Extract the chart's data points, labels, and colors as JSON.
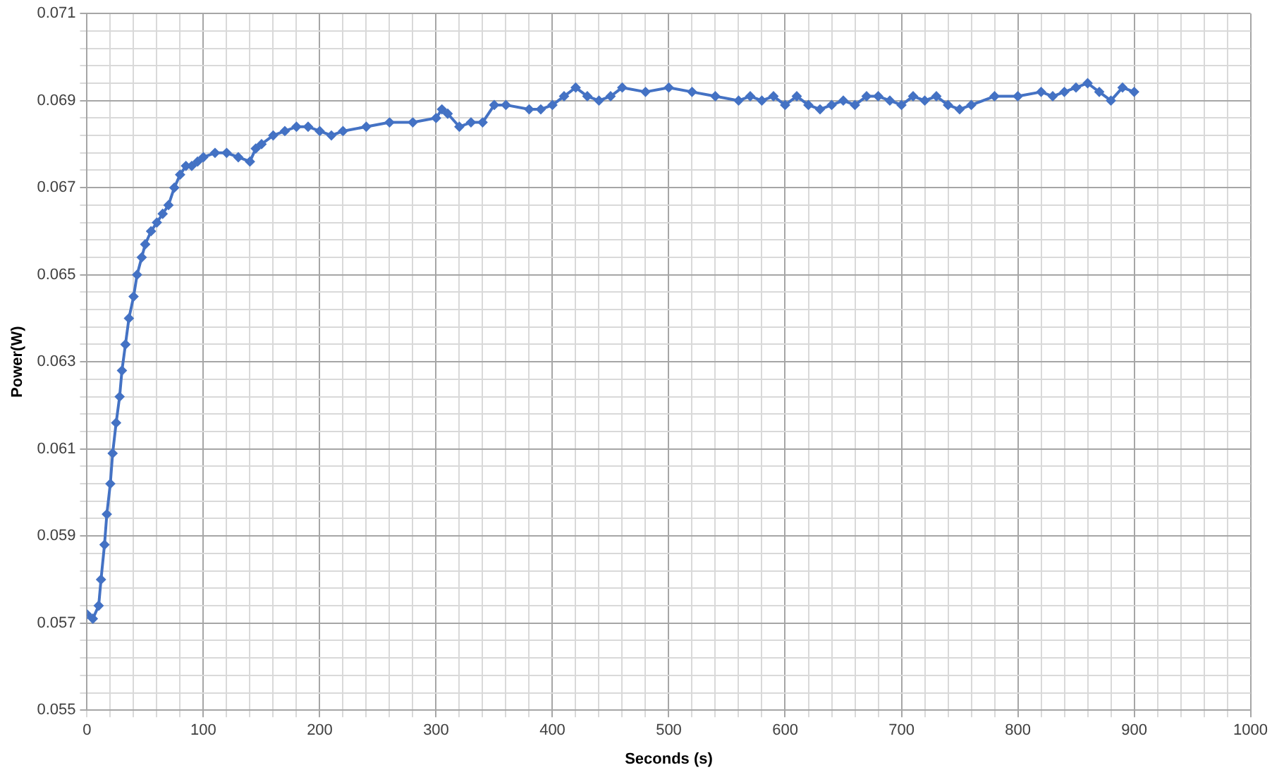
{
  "chart_data": {
    "type": "line",
    "xlabel": "Seconds (s)",
    "ylabel": "Power(W)",
    "marker": "diamond",
    "grid": true,
    "legend": false,
    "xlim": [
      0,
      1000
    ],
    "ylim": [
      0.055,
      0.071
    ],
    "xticks": [
      0,
      {
        "value": 20,
        "label": null
      },
      {
        "value": 40,
        "label": null
      },
      {
        "value": 60,
        "label": null
      },
      {
        "value": 80,
        "label": null
      },
      100,
      {
        "value": 120,
        "label": null
      },
      {
        "value": 140,
        "label": null
      },
      {
        "value": 160,
        "label": null
      },
      {
        "value": 180,
        "label": null
      },
      200,
      {
        "value": 220,
        "label": null
      },
      {
        "value": 240,
        "label": null
      },
      {
        "value": 260,
        "label": null
      },
      {
        "value": 280,
        "label": null
      },
      300,
      {
        "value": 320,
        "label": null
      },
      {
        "value": 340,
        "label": null
      },
      {
        "value": 360,
        "label": null
      },
      {
        "value": 380,
        "label": null
      },
      400,
      {
        "value": 420,
        "label": null
      },
      {
        "value": 440,
        "label": null
      },
      {
        "value": 460,
        "label": null
      },
      {
        "value": 480,
        "label": null
      },
      500,
      {
        "value": 520,
        "label": null
      },
      {
        "value": 540,
        "label": null
      },
      {
        "value": 560,
        "label": null
      },
      {
        "value": 580,
        "label": null
      },
      600,
      {
        "value": 620,
        "label": null
      },
      {
        "value": 640,
        "label": null
      },
      {
        "value": 660,
        "label": null
      },
      {
        "value": 680,
        "label": null
      },
      700,
      {
        "value": 720,
        "label": null
      },
      {
        "value": 740,
        "label": null
      },
      {
        "value": 760,
        "label": null
      },
      {
        "value": 780,
        "label": null
      },
      800,
      {
        "value": 820,
        "label": null
      },
      {
        "value": 840,
        "label": null
      },
      {
        "value": 860,
        "label": null
      },
      {
        "value": 880,
        "label": null
      },
      900,
      {
        "value": 920,
        "label": null
      },
      {
        "value": 940,
        "label": null
      },
      {
        "value": 960,
        "label": null
      },
      {
        "value": 980,
        "label": null
      },
      1000
    ],
    "yticks": [
      {
        "value": 0.055,
        "label": "0.055"
      },
      {
        "value": 0.0554,
        "label": null
      },
      {
        "value": 0.0558,
        "label": null
      },
      {
        "value": 0.0562,
        "label": null
      },
      {
        "value": 0.0566,
        "label": null
      },
      {
        "value": 0.057,
        "label": "0.057"
      },
      {
        "value": 0.0574,
        "label": null
      },
      {
        "value": 0.0578,
        "label": null
      },
      {
        "value": 0.0582,
        "label": null
      },
      {
        "value": 0.0586,
        "label": null
      },
      {
        "value": 0.059,
        "label": "0.059"
      },
      {
        "value": 0.0594,
        "label": null
      },
      {
        "value": 0.0598,
        "label": null
      },
      {
        "value": 0.0602,
        "label": null
      },
      {
        "value": 0.0606,
        "label": null
      },
      {
        "value": 0.061,
        "label": "0.061"
      },
      {
        "value": 0.0614,
        "label": null
      },
      {
        "value": 0.0618,
        "label": null
      },
      {
        "value": 0.0622,
        "label": null
      },
      {
        "value": 0.0626,
        "label": null
      },
      {
        "value": 0.063,
        "label": "0.063"
      },
      {
        "value": 0.0634,
        "label": null
      },
      {
        "value": 0.0638,
        "label": null
      },
      {
        "value": 0.0642,
        "label": null
      },
      {
        "value": 0.0646,
        "label": null
      },
      {
        "value": 0.065,
        "label": "0.065"
      },
      {
        "value": 0.0654,
        "label": null
      },
      {
        "value": 0.0658,
        "label": null
      },
      {
        "value": 0.0662,
        "label": null
      },
      {
        "value": 0.0666,
        "label": null
      },
      {
        "value": 0.067,
        "label": "0.067"
      },
      {
        "value": 0.0674,
        "label": null
      },
      {
        "value": 0.0678,
        "label": null
      },
      {
        "value": 0.0682,
        "label": null
      },
      {
        "value": 0.0686,
        "label": null
      },
      {
        "value": 0.069,
        "label": "0.069"
      },
      {
        "value": 0.0694,
        "label": null
      },
      {
        "value": 0.0698,
        "label": null
      },
      {
        "value": 0.0702,
        "label": null
      },
      {
        "value": 0.0706,
        "label": null
      },
      {
        "value": 0.071,
        "label": "0.071"
      }
    ],
    "x": [
      0,
      5,
      10,
      12,
      15,
      17,
      20,
      22,
      25,
      28,
      30,
      33,
      36,
      40,
      43,
      47,
      50,
      55,
      60,
      65,
      70,
      75,
      80,
      85,
      90,
      95,
      100,
      110,
      120,
      130,
      140,
      145,
      150,
      160,
      170,
      180,
      190,
      200,
      210,
      220,
      240,
      260,
      280,
      300,
      305,
      310,
      320,
      330,
      340,
      350,
      360,
      380,
      390,
      400,
      410,
      420,
      430,
      440,
      450,
      460,
      480,
      500,
      520,
      540,
      560,
      570,
      580,
      590,
      600,
      610,
      620,
      630,
      640,
      650,
      660,
      670,
      680,
      690,
      700,
      710,
      720,
      730,
      740,
      750,
      760,
      780,
      800,
      820,
      830,
      840,
      850,
      860,
      870,
      880,
      890,
      900
    ],
    "series": [
      {
        "color": "#4472c4",
        "values": [
          0.0572,
          0.0571,
          0.0574,
          0.058,
          0.0588,
          0.0595,
          0.0602,
          0.0609,
          0.0616,
          0.0622,
          0.0628,
          0.0634,
          0.064,
          0.0645,
          0.065,
          0.0654,
          0.0657,
          0.066,
          0.0662,
          0.0664,
          0.0666,
          0.067,
          0.0673,
          0.0675,
          0.0675,
          0.0676,
          0.0677,
          0.0678,
          0.0678,
          0.0677,
          0.0676,
          0.0679,
          0.068,
          0.0682,
          0.0683,
          0.0684,
          0.0684,
          0.0683,
          0.0682,
          0.0683,
          0.0684,
          0.0685,
          0.0685,
          0.0686,
          0.0688,
          0.0687,
          0.0684,
          0.0685,
          0.0685,
          0.0689,
          0.0689,
          0.0688,
          0.0688,
          0.0689,
          0.0691,
          0.0693,
          0.0691,
          0.069,
          0.0691,
          0.0693,
          0.0692,
          0.0693,
          0.0692,
          0.0691,
          0.069,
          0.0691,
          0.069,
          0.0691,
          0.0689,
          0.0691,
          0.0689,
          0.0688,
          0.0689,
          0.069,
          0.0689,
          0.0691,
          0.0691,
          0.069,
          0.0689,
          0.0691,
          0.069,
          0.0691,
          0.0689,
          0.0688,
          0.0689,
          0.0691,
          0.0691,
          0.0692,
          0.0691,
          0.0692,
          0.0693,
          0.0694,
          0.0692,
          0.069,
          0.0693,
          0.0692
        ]
      }
    ]
  }
}
